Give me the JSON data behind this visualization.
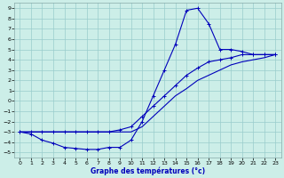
{
  "xlabel": "Graphe des températures (°c)",
  "xlim": [
    -0.5,
    23.5
  ],
  "ylim": [
    -5.5,
    9.5
  ],
  "xticks": [
    0,
    1,
    2,
    3,
    4,
    5,
    6,
    7,
    8,
    9,
    10,
    11,
    12,
    13,
    14,
    15,
    16,
    17,
    18,
    19,
    20,
    21,
    22,
    23
  ],
  "yticks": [
    -5,
    -4,
    -3,
    -2,
    -1,
    0,
    1,
    2,
    3,
    4,
    5,
    6,
    7,
    8,
    9
  ],
  "background_color": "#cceee8",
  "line_color": "#0000bb",
  "grid_color": "#99cccc",
  "line1_x": [
    0,
    1,
    2,
    3,
    4,
    5,
    6,
    7,
    8,
    9,
    10,
    11,
    12,
    13,
    14,
    15,
    16,
    17,
    18,
    19,
    20,
    21,
    22,
    23
  ],
  "line1_y": [
    -3,
    -3.2,
    -3.8,
    -4.1,
    -4.5,
    -4.6,
    -4.7,
    -4.7,
    -4.5,
    -4.5,
    -3.8,
    -2,
    0.5,
    3,
    5.5,
    8.8,
    9,
    7.5,
    5,
    5,
    4.8,
    4.5,
    4.5,
    4.5
  ],
  "line2_x": [
    0,
    1,
    2,
    3,
    4,
    5,
    6,
    7,
    8,
    9,
    10,
    11,
    12,
    13,
    14,
    15,
    16,
    17,
    18,
    19,
    20,
    21,
    22,
    23
  ],
  "line2_y": [
    -3,
    -3,
    -3,
    -3,
    -3,
    -3,
    -3,
    -3,
    -3,
    -2.8,
    -2.5,
    -1.5,
    -0.5,
    0.5,
    1.5,
    2.5,
    3.2,
    3.8,
    4,
    4.2,
    4.5,
    4.5,
    4.5,
    4.5
  ],
  "line3_x": [
    0,
    10,
    11,
    12,
    13,
    14,
    15,
    16,
    17,
    18,
    19,
    20,
    21,
    22,
    23
  ],
  "line3_y": [
    -3,
    -3,
    -2.5,
    -1.5,
    -0.5,
    0.5,
    1.2,
    2,
    2.5,
    3,
    3.5,
    3.8,
    4,
    4.2,
    4.5
  ]
}
